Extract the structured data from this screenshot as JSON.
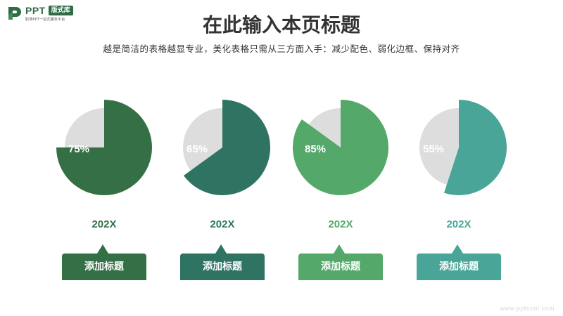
{
  "logo": {
    "brand": "PPT",
    "badge": "版式库",
    "tagline": "职场PPT一站式服务平台",
    "color": "#2f6b45"
  },
  "header": {
    "title": "在此输入本页标题",
    "subtitle": "越是简洁的表格越显专业，美化表格只需从三方面入手：减少配色、弱化边框、保持对齐"
  },
  "chart_data": {
    "type": "pie",
    "items": [
      {
        "percent_label": "75%",
        "value": 75,
        "year": "202X",
        "label": "添加标题",
        "color": "#356f46"
      },
      {
        "percent_label": "65%",
        "value": 65,
        "year": "202X",
        "label": "添加标题",
        "color": "#2f7463"
      },
      {
        "percent_label": "85%",
        "value": 85,
        "year": "202X",
        "label": "添加标题",
        "color": "#54a86a"
      },
      {
        "percent_label": "55%",
        "value": 55,
        "year": "202X",
        "label": "添加标题",
        "color": "#48a597"
      }
    ],
    "remainder_color": "#dddddd"
  },
  "watermark": "www.pptcool.com"
}
